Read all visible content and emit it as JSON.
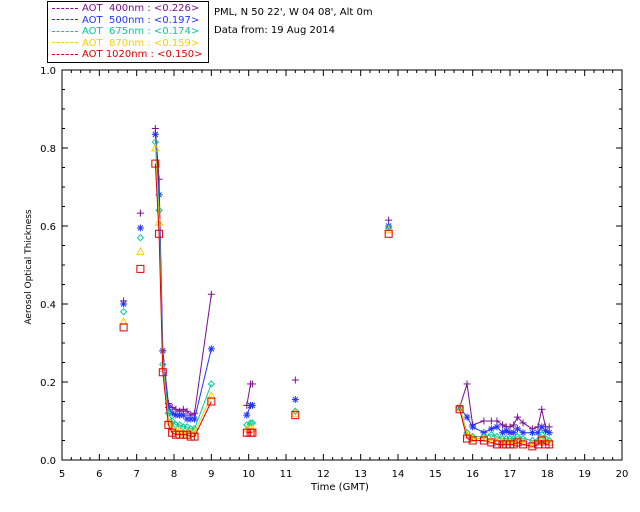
{
  "header": {
    "location": "PML, N 50 22', W 04 08', Alt 0m",
    "date_line": "Data from: 19 Aug 2014"
  },
  "legend": [
    {
      "label": "AOT  400nm : <0.226>",
      "color": "#7a0f8f"
    },
    {
      "label": "AOT  500nm : <0.197>",
      "color": "#2233ff"
    },
    {
      "label": "AOT  675nm : <0.174>",
      "color": "#00cc99"
    },
    {
      "label": "AOT  870nm : <0.159>",
      "color": "#ffcc00"
    },
    {
      "label": "AOT 1020nm : <0.150>",
      "color": "#dd0000"
    }
  ],
  "chart_data": {
    "type": "scatter",
    "xlabel": "Time (GMT)",
    "ylabel": "Aerosol Optical Thickness",
    "xlim": [
      5,
      20
    ],
    "ylim": [
      0,
      1.0
    ],
    "xticks": [
      "5",
      "6",
      "7",
      "8",
      "9",
      "10",
      "11",
      "12",
      "13",
      "14",
      "15",
      "16",
      "17",
      "18",
      "19",
      "20"
    ],
    "yticks": [
      "0.0",
      "0.2",
      "0.4",
      "0.6",
      "0.8",
      "1.0"
    ],
    "grid": false,
    "legend_position": "top-left",
    "x": [
      6.65,
      7.1,
      7.5,
      7.6,
      7.7,
      7.85,
      7.95,
      8.05,
      8.15,
      8.25,
      8.35,
      8.45,
      8.55,
      9.0,
      9.95,
      10.05,
      10.1,
      11.25,
      13.75,
      15.65,
      15.85,
      16.0,
      16.3,
      16.5,
      16.65,
      16.8,
      16.9,
      17.0,
      17.1,
      17.2,
      17.35,
      17.6,
      17.75,
      17.85,
      17.95,
      18.05
    ],
    "series": [
      {
        "name": "AOT  400nm",
        "marker": "plus",
        "connected_from": 2,
        "values": [
          0.408,
          0.633,
          0.85,
          0.72,
          0.28,
          0.145,
          0.135,
          0.13,
          0.125,
          0.13,
          0.125,
          0.115,
          0.12,
          0.425,
          0.14,
          0.195,
          0.195,
          0.205,
          0.615,
          0.135,
          0.195,
          0.09,
          0.1,
          0.1,
          0.1,
          0.09,
          0.085,
          0.085,
          0.09,
          0.11,
          0.095,
          0.08,
          0.085,
          0.13,
          0.085,
          0.085
        ]
      },
      {
        "name": "AOT  500nm",
        "marker": "asterisk",
        "connected_from": 2,
        "values": [
          0.4,
          0.595,
          0.835,
          0.68,
          0.28,
          0.135,
          0.12,
          0.115,
          0.115,
          0.115,
          0.105,
          0.105,
          0.105,
          0.285,
          0.115,
          0.14,
          0.14,
          0.155,
          0.6,
          0.135,
          0.11,
          0.085,
          0.07,
          0.08,
          0.085,
          0.07,
          0.075,
          0.07,
          0.07,
          0.08,
          0.07,
          0.07,
          0.07,
          0.085,
          0.075,
          0.07
        ]
      },
      {
        "name": "AOT  675nm",
        "marker": "diamond",
        "connected_from": 2,
        "values": [
          0.38,
          0.57,
          0.815,
          0.64,
          0.245,
          0.12,
          0.1,
          0.09,
          0.09,
          0.085,
          0.085,
          0.08,
          0.08,
          0.195,
          0.09,
          0.095,
          0.095,
          0.125,
          0.595,
          0.135,
          0.07,
          0.06,
          0.06,
          0.065,
          0.06,
          0.055,
          0.055,
          0.055,
          0.055,
          0.06,
          0.055,
          0.05,
          0.05,
          0.065,
          0.055,
          0.05
        ]
      },
      {
        "name": "AOT  870nm",
        "marker": "triangle",
        "connected_from": 2,
        "values": [
          0.355,
          0.535,
          0.8,
          0.61,
          0.235,
          0.1,
          0.08,
          0.075,
          0.075,
          0.07,
          0.07,
          0.07,
          0.07,
          0.165,
          0.08,
          0.08,
          0.08,
          0.12,
          0.59,
          0.135,
          0.065,
          0.055,
          0.055,
          0.05,
          0.05,
          0.045,
          0.045,
          0.045,
          0.045,
          0.05,
          0.045,
          0.04,
          0.045,
          0.055,
          0.045,
          0.045
        ]
      },
      {
        "name": "AOT 1020nm",
        "marker": "square",
        "connected_from": 2,
        "values": [
          0.34,
          0.49,
          0.76,
          0.58,
          0.225,
          0.09,
          0.07,
          0.065,
          0.065,
          0.065,
          0.065,
          0.06,
          0.06,
          0.15,
          0.07,
          0.07,
          0.07,
          0.115,
          0.58,
          0.13,
          0.055,
          0.05,
          0.05,
          0.045,
          0.04,
          0.04,
          0.04,
          0.04,
          0.04,
          0.045,
          0.04,
          0.035,
          0.04,
          0.05,
          0.04,
          0.04
        ]
      }
    ]
  }
}
